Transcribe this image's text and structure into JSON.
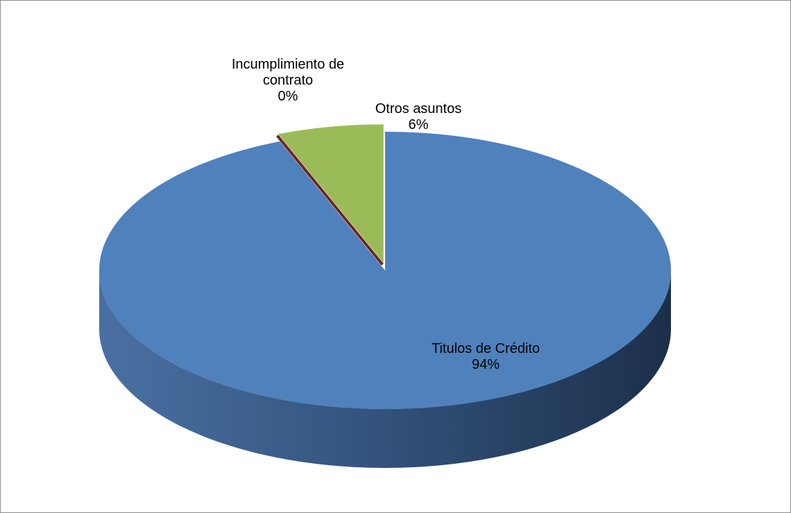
{
  "chart_data": {
    "type": "pie",
    "categories": [
      "Titulos de Crédito",
      "Incumplimiento de contrato",
      "Otros asuntos"
    ],
    "values": [
      94,
      0,
      6
    ],
    "value_labels": [
      "94%",
      "0%",
      "6%"
    ],
    "colors": [
      "#4f81bd",
      "#c0504d",
      "#9bbb59"
    ]
  }
}
